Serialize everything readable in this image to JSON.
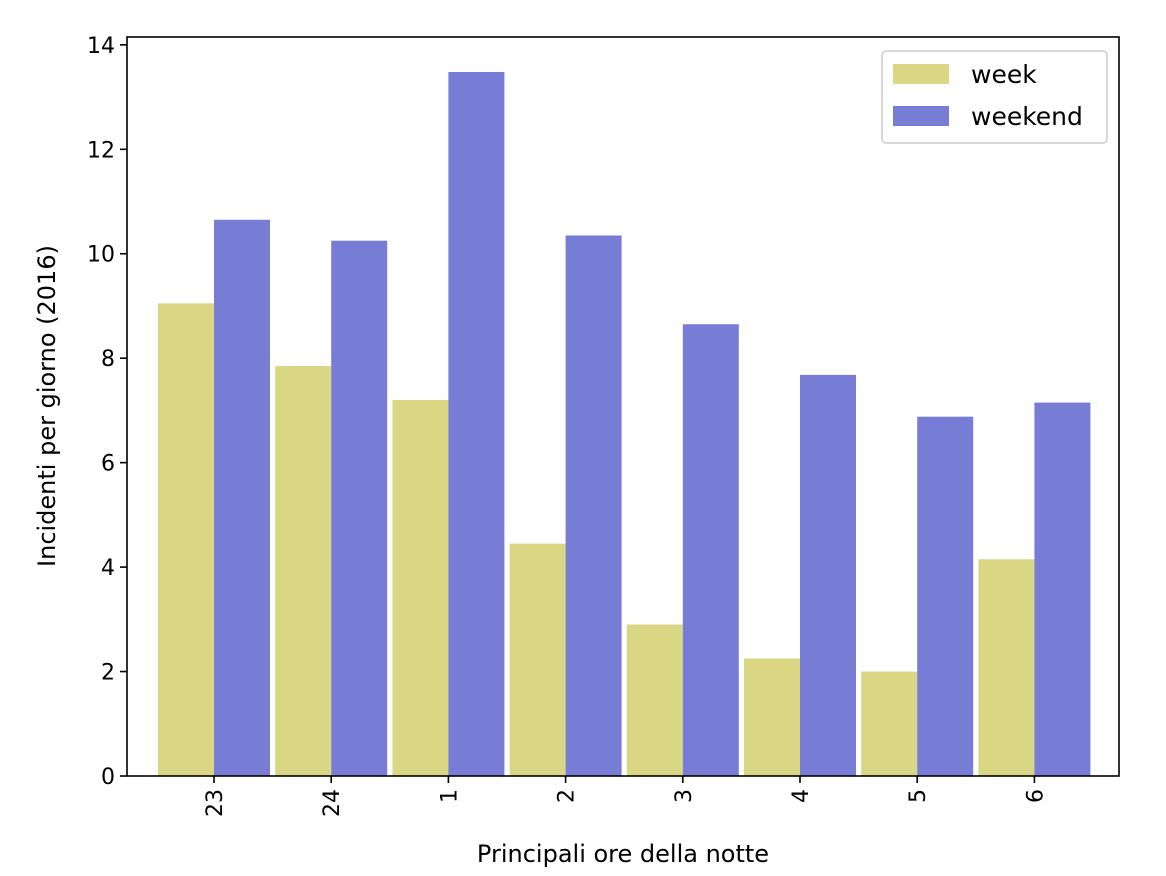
{
  "chart_data": {
    "type": "bar",
    "categories": [
      "23",
      "24",
      "1",
      "2",
      "3",
      "4",
      "5",
      "6"
    ],
    "series": [
      {
        "name": "week",
        "color": "#dad784",
        "values": [
          9.05,
          7.85,
          7.2,
          4.45,
          2.9,
          2.25,
          2.0,
          4.15
        ]
      },
      {
        "name": "weekend",
        "color": "#777cd4",
        "values": [
          10.65,
          10.25,
          13.48,
          10.35,
          8.65,
          7.68,
          6.88,
          7.15
        ]
      }
    ],
    "title": "",
    "xlabel": "Principali ore della notte",
    "ylabel": "Incidenti per giorno (2016)",
    "ylim": [
      0,
      14.15
    ],
    "yticks": [
      "0",
      "2",
      "4",
      "6",
      "8",
      "10",
      "12",
      "14"
    ],
    "xtick_rotation": "vertical",
    "grid": false,
    "legend": {
      "position": "top-right"
    }
  }
}
